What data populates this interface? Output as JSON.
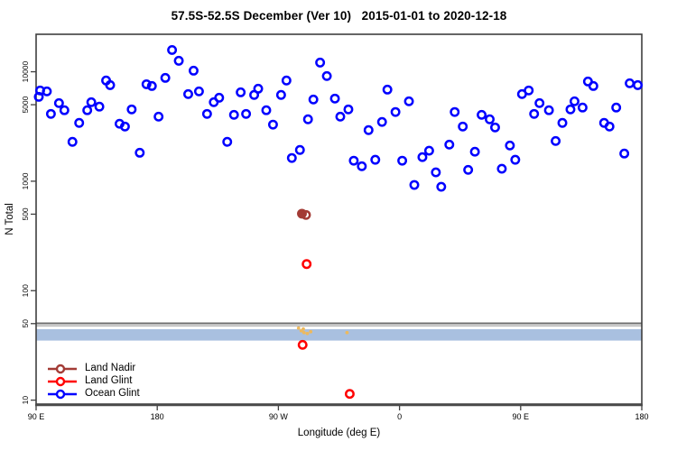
{
  "title": "57.5S-52.5S December (Ver 10)   2015-01-01 to 2020-12-18",
  "chart_data": {
    "type": "scatter",
    "xlabel": "Longitude (deg E)",
    "ylabel": "N Total",
    "grid": false,
    "x_axis": {
      "min": 90,
      "max": 540,
      "ticks": [
        {
          "value": 90,
          "label": "90 E"
        },
        {
          "value": 180,
          "label": "180"
        },
        {
          "value": 270,
          "label": "90 W"
        },
        {
          "value": 360,
          "label": "0"
        },
        {
          "value": 450,
          "label": "90 E"
        },
        {
          "value": 540,
          "label": "180"
        }
      ]
    },
    "y_axis": {
      "scale": "log",
      "min": 9.2,
      "max": 22000,
      "ticks": [
        {
          "value": 10,
          "label": "10"
        },
        {
          "value": 50,
          "label": "50"
        },
        {
          "value": 100,
          "label": "100"
        },
        {
          "value": 500,
          "label": "500"
        },
        {
          "value": 1000,
          "label": "1000"
        },
        {
          "value": 5000,
          "label": "5000"
        },
        {
          "value": 10000,
          "label": "10000"
        }
      ]
    },
    "band": {
      "from": 35,
      "to": 44.5,
      "color": "#a9c0e0"
    },
    "hlines": [
      {
        "value": 50.3,
        "color": "#6f6f6f",
        "width": 2
      },
      {
        "value": 47.8,
        "color": "#ababab",
        "width": 1.4
      }
    ],
    "series": [
      {
        "name": "Ocean Glint",
        "color": "#0000ff",
        "marker": "open-circle",
        "points": [
          [
            93,
            6750
          ],
          [
            98,
            6620
          ],
          [
            92,
            5900
          ],
          [
            107,
            5170
          ],
          [
            101,
            4120
          ],
          [
            111,
            4450
          ],
          [
            122,
            3410
          ],
          [
            117,
            2290
          ],
          [
            128,
            4450
          ],
          [
            131,
            5270
          ],
          [
            137,
            4800
          ],
          [
            142,
            8320
          ],
          [
            145,
            7550
          ],
          [
            152,
            3350
          ],
          [
            156,
            3160
          ],
          [
            161,
            4530
          ],
          [
            167,
            1820
          ],
          [
            172,
            7690
          ],
          [
            176,
            7410
          ],
          [
            181,
            3890
          ],
          [
            186,
            8790
          ],
          [
            191,
            15800
          ],
          [
            196,
            12600
          ],
          [
            203,
            6250
          ],
          [
            207,
            10230
          ],
          [
            211,
            6620
          ],
          [
            217,
            4120
          ],
          [
            222,
            5270
          ],
          [
            226,
            5790
          ],
          [
            232,
            2290
          ],
          [
            237,
            4040
          ],
          [
            242,
            6490
          ],
          [
            246,
            4120
          ],
          [
            252,
            6140
          ],
          [
            255,
            7000
          ],
          [
            261,
            4450
          ],
          [
            266,
            3290
          ],
          [
            272,
            6140
          ],
          [
            276,
            8320
          ],
          [
            280,
            1630
          ],
          [
            286,
            1930
          ],
          [
            292,
            3680
          ],
          [
            296,
            5580
          ],
          [
            301,
            12130
          ],
          [
            306,
            9140
          ],
          [
            312,
            5690
          ],
          [
            316,
            3890
          ],
          [
            322,
            4530
          ],
          [
            326,
            1540
          ],
          [
            332,
            1370
          ],
          [
            337,
            2930
          ],
          [
            342,
            1570
          ],
          [
            347,
            3480
          ],
          [
            351,
            6870
          ],
          [
            357,
            4290
          ],
          [
            362,
            1540
          ],
          [
            367,
            5370
          ],
          [
            371,
            925
          ],
          [
            377,
            1660
          ],
          [
            382,
            1900
          ],
          [
            387,
            1205
          ],
          [
            391,
            890
          ],
          [
            397,
            2160
          ],
          [
            401,
            4290
          ],
          [
            407,
            3160
          ],
          [
            411,
            1270
          ],
          [
            416,
            1860
          ],
          [
            421,
            4040
          ],
          [
            427,
            3680
          ],
          [
            431,
            3100
          ],
          [
            436,
            1300
          ],
          [
            442,
            2120
          ],
          [
            446,
            1570
          ],
          [
            451,
            6250
          ],
          [
            456,
            6750
          ],
          [
            460,
            4120
          ],
          [
            464,
            5170
          ],
          [
            471,
            4450
          ],
          [
            476,
            2330
          ],
          [
            481,
            3410
          ],
          [
            487,
            4530
          ],
          [
            490,
            5370
          ],
          [
            496,
            4710
          ],
          [
            500,
            8150
          ],
          [
            504,
            7410
          ],
          [
            512,
            3410
          ],
          [
            516,
            3160
          ],
          [
            521,
            4710
          ],
          [
            527,
            1790
          ],
          [
            531,
            7850
          ],
          [
            537,
            7550
          ]
        ]
      },
      {
        "name": "Land Nadir",
        "color": "#a33b35",
        "marker": "open-circle",
        "points": [
          [
            287.5,
            505,
            1
          ],
          [
            290.5,
            492,
            0
          ]
        ]
      },
      {
        "name": "Land Glint",
        "color": "#ff0000",
        "marker": "open-circle",
        "points": [
          [
            291,
            175
          ],
          [
            288,
            32
          ],
          [
            323,
            11.4
          ]
        ]
      },
      {
        "name": "orange-marks",
        "color": "#edb95e",
        "marker": "dot",
        "points": [
          [
            285,
            45.5
          ],
          [
            287,
            43
          ],
          [
            288.5,
            44.7
          ],
          [
            289,
            41.4
          ],
          [
            291.5,
            40.6
          ],
          [
            294,
            42.2
          ],
          [
            321,
            41.4
          ]
        ]
      }
    ],
    "legend": {
      "position": "bottom-left",
      "items": [
        {
          "label": "Land Nadir",
          "color": "#a33b35"
        },
        {
          "label": "Land Glint",
          "color": "#ff0000"
        },
        {
          "label": "Ocean Glint",
          "color": "#0000ff"
        }
      ]
    }
  }
}
